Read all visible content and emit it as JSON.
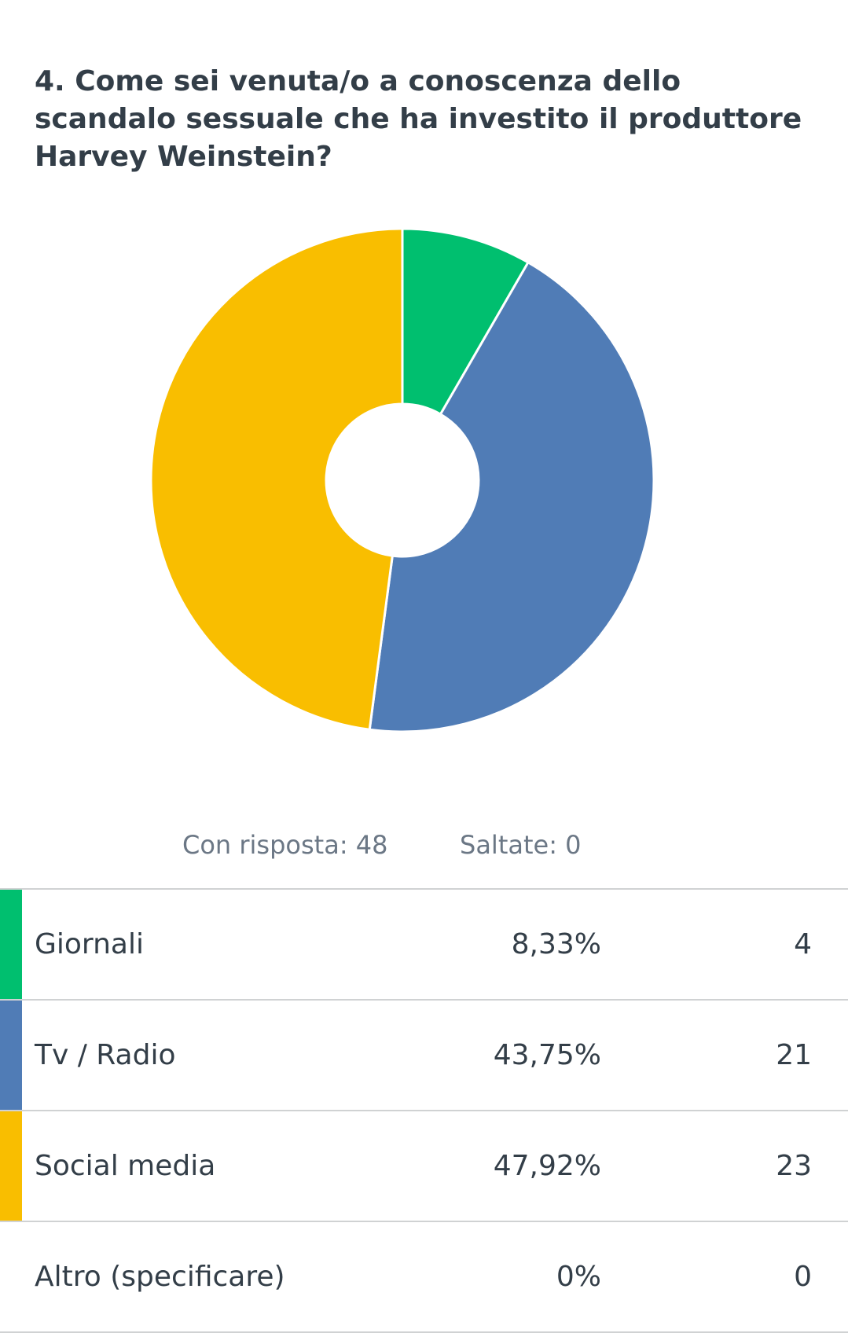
{
  "question": {
    "title": "4. Come sei venuta/o a conoscenza dello scandalo sessuale che ha investito il produttore Harvey Weinstein?"
  },
  "summary": {
    "answered_label": "Con risposta:",
    "answered_value": "48",
    "skipped_label": "Saltate:",
    "skipped_value": "0"
  },
  "answers": [
    {
      "label": "Giornali",
      "percent": "8,33%",
      "count": "4",
      "color": "#00bf6f"
    },
    {
      "label": "Tv / Radio",
      "percent": "43,75%",
      "count": "21",
      "color": "#507cb6"
    },
    {
      "label": "Social media",
      "percent": "47,92%",
      "count": "23",
      "color": "#f9be00"
    },
    {
      "label": "Altro (specificare)",
      "percent": "0%",
      "count": "0",
      "color": "#6bc8cd"
    }
  ],
  "chart_data": {
    "type": "pie",
    "variant": "donut",
    "categories": [
      "Giornali",
      "Tv / Radio",
      "Social media",
      "Altro (specificare)"
    ],
    "values": [
      4,
      21,
      23,
      0
    ],
    "percentages": [
      8.33,
      43.75,
      47.92,
      0
    ],
    "colors": [
      "#00bf6f",
      "#507cb6",
      "#f9be00",
      "#6bc8cd"
    ],
    "start_angle": "12 o'clock",
    "direction": "clockwise",
    "legend": "table-below"
  }
}
